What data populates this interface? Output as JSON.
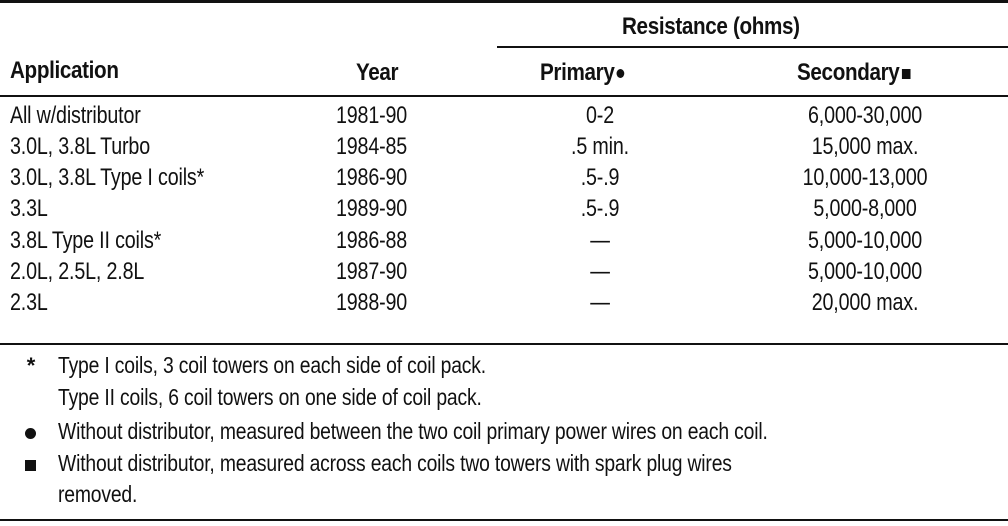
{
  "table": {
    "group_header": "Resistance (ohms)",
    "columns": {
      "application": "Application",
      "year": "Year",
      "primary": "Primary",
      "secondary": "Secondary"
    },
    "rows": [
      {
        "application": "All w/distributor",
        "year": "1981-90",
        "primary": "0-2",
        "secondary": "6,000-30,000"
      },
      {
        "application": "3.0L, 3.8L Turbo",
        "year": "1984-85",
        "primary": ".5 min.",
        "secondary": "15,000 max."
      },
      {
        "application": "3.0L, 3.8L Type I coils*",
        "year": "1986-90",
        "primary": ".5-.9",
        "secondary": "10,000-13,000"
      },
      {
        "application": "3.3L",
        "year": "1989-90",
        "primary": ".5-.9",
        "secondary": "5,000-8,000"
      },
      {
        "application": "3.8L Type II coils*",
        "year": "1986-88",
        "primary": "—",
        "secondary": "5,000-10,000"
      },
      {
        "application": "2.0L, 2.5L, 2.8L",
        "year": "1987-90",
        "primary": "—",
        "secondary": "5,000-10,000"
      },
      {
        "application": "2.3L",
        "year": "1988-90",
        "primary": "—",
        "secondary": "20,000 max."
      }
    ]
  },
  "footnotes": {
    "star_mark": "*",
    "star_line1": "Type I coils, 3 coil towers on each side of coil pack.",
    "star_line2": "Type II coils, 6 coil towers on one side of coil pack.",
    "dot_text": "Without distributor, measured between the two coil primary power wires on each coil.",
    "square_line1": "Without distributor, measured across each coils two towers with spark plug wires",
    "square_line2": "removed."
  }
}
